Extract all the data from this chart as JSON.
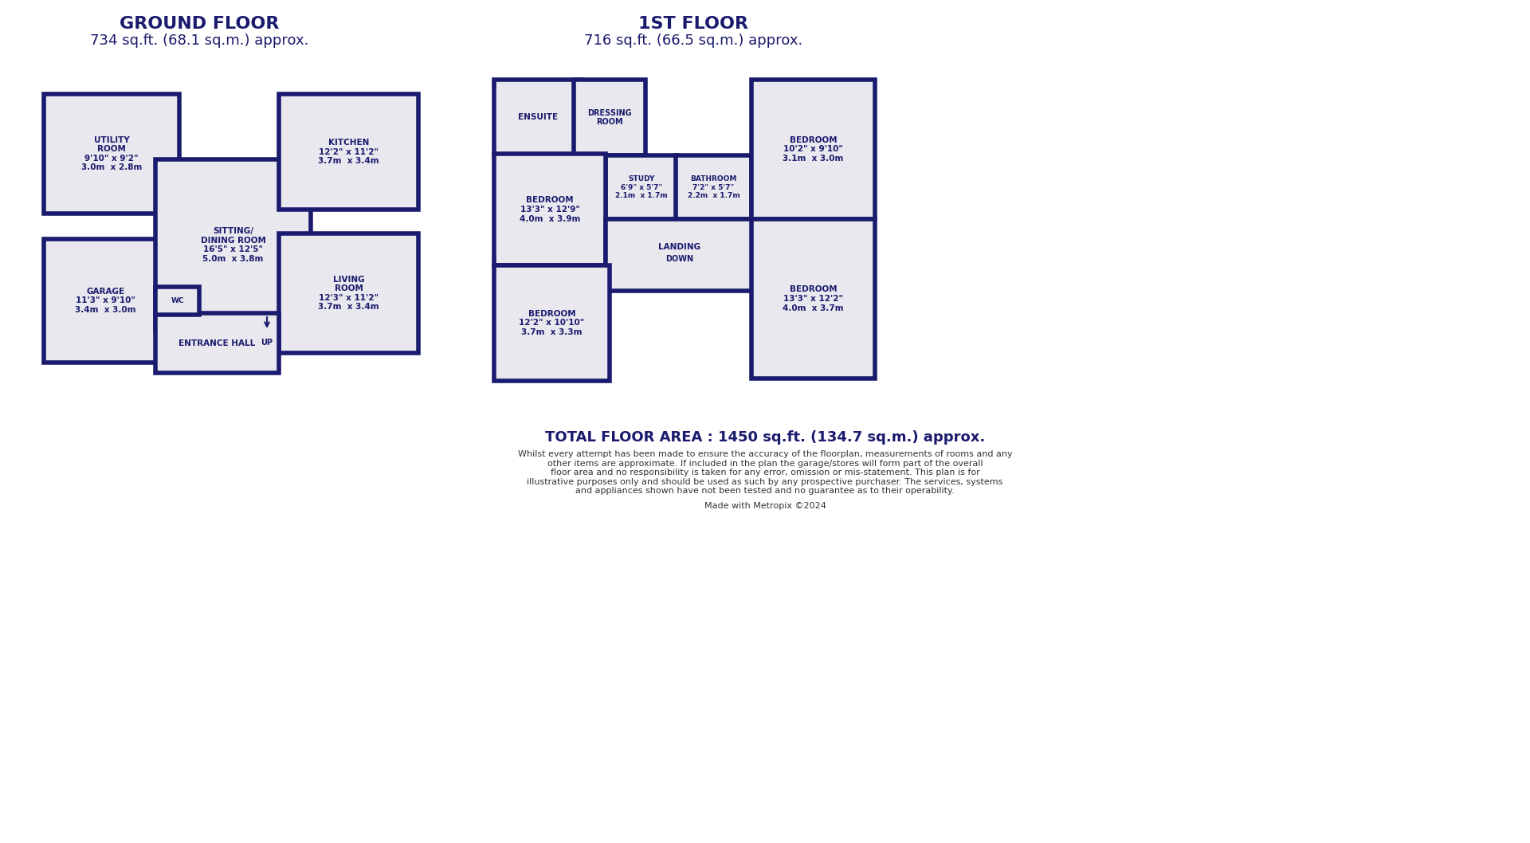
{
  "bg_color": "#FFFFFF",
  "wall_color": "#1a1a6e",
  "room_fill": "#e8e8ee",
  "wall_lw": 4,
  "title_color": "#1a1a6e",
  "ground_floor_title": "GROUND FLOOR",
  "ground_floor_subtitle": "734 sq.ft. (68.1 sq.m.) approx.",
  "first_floor_title": "1ST FLOOR",
  "first_floor_subtitle": "716 sq.ft. (66.5 sq.m.) approx.",
  "total_area": "TOTAL FLOOR AREA : 1450 sq.ft. (134.7 sq.m.) approx.",
  "disclaimer": "Whilst every attempt has been made to ensure the accuracy of the floorplan, measurements of rooms and any\nother items are approximate. If included in the plan the garage/stores will form part of the overall\nfloor area and no responsibility is taken for any error, omission or mis-statement. This plan is for\nillustrative purposes only and should be used as such by any prospective purchaser. The services, systems\nand appliances shown have not been tested and no guarantee as to their operability.",
  "made_with": "Made with Metropix ©2024"
}
